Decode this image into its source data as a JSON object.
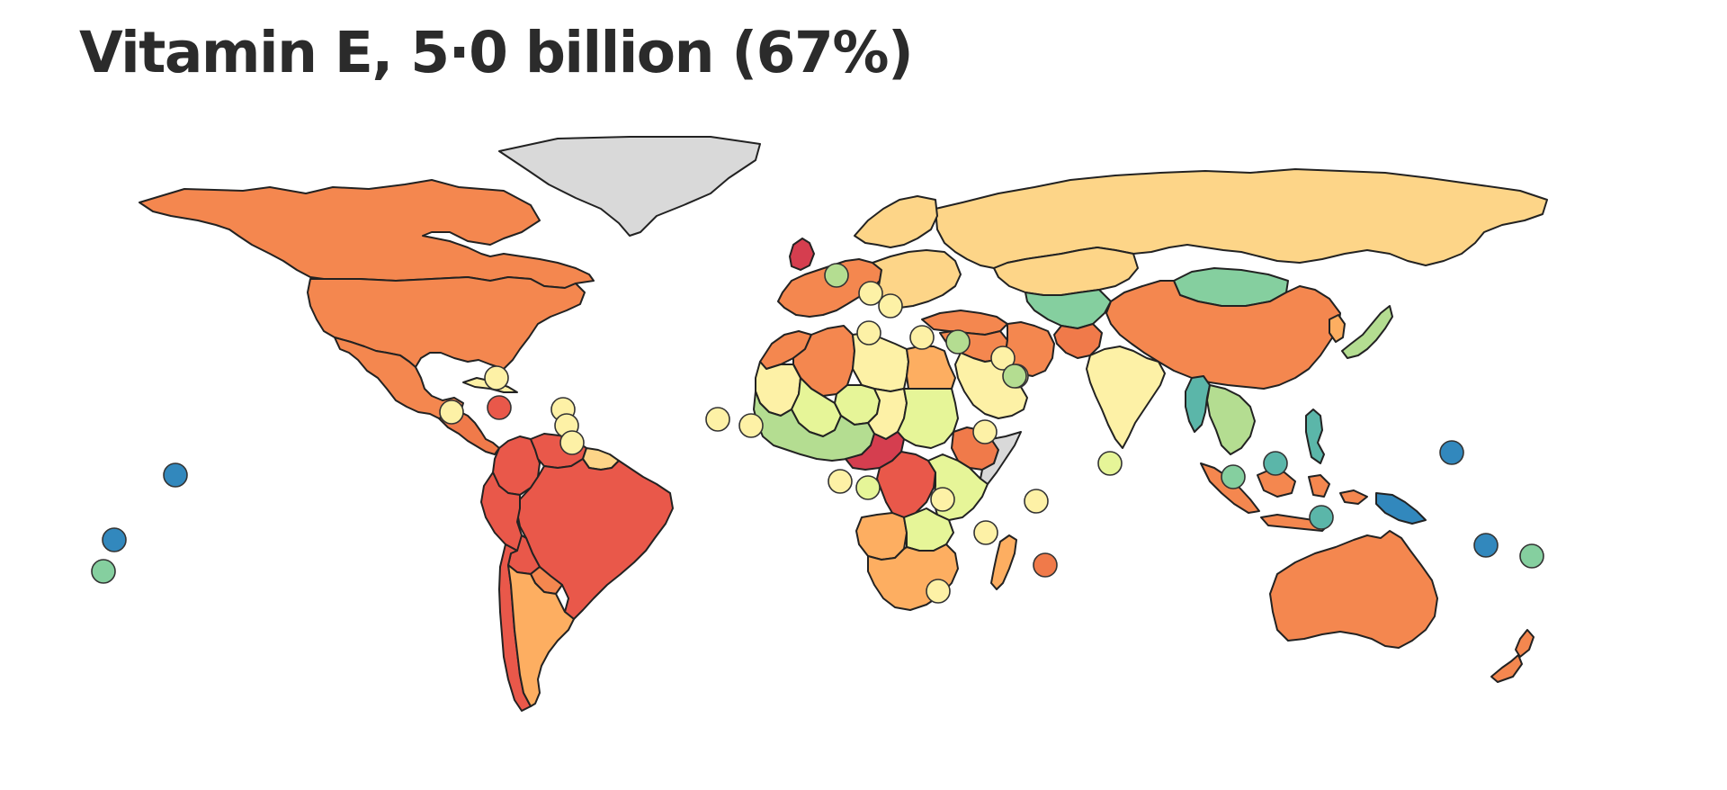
{
  "map": {
    "title": "Vitamin E, 5·0 billion (67%)"
  },
  "colors": {
    "no_data": "#d9d9d9",
    "dark_red": "#d53e4f",
    "red": "#e9584a",
    "orange_red": "#f07a4a",
    "orange": "#f4874f",
    "light_orange": "#fdae61",
    "pale_orange": "#fdd588",
    "pale_yellow": "#fdf1a6",
    "yellow_green": "#e6f598",
    "light_green": "#b4dd91",
    "green": "#85cf9f",
    "teal": "#5bb6a9",
    "blue": "#3288bd"
  },
  "regions": [
    {
      "name": "Greenland",
      "color": "no_data"
    },
    {
      "name": "Canada",
      "color": "orange"
    },
    {
      "name": "United States",
      "color": "orange"
    },
    {
      "name": "Mexico",
      "color": "orange"
    },
    {
      "name": "Cuba",
      "color": "pale_yellow"
    },
    {
      "name": "Central America",
      "color": "orange_red"
    },
    {
      "name": "Brazil",
      "color": "red"
    },
    {
      "name": "Colombia",
      "color": "red"
    },
    {
      "name": "Venezuela",
      "color": "red"
    },
    {
      "name": "Guianas",
      "color": "pale_orange"
    },
    {
      "name": "Peru",
      "color": "red"
    },
    {
      "name": "Bolivia",
      "color": "red"
    },
    {
      "name": "Paraguay",
      "color": "orange"
    },
    {
      "name": "Argentina",
      "color": "light_orange"
    },
    {
      "name": "Chile",
      "color": "red"
    },
    {
      "name": "Russia",
      "color": "pale_orange"
    },
    {
      "name": "Scandinavia",
      "color": "pale_orange"
    },
    {
      "name": "Western Europe",
      "color": "orange"
    },
    {
      "name": "United Kingdom",
      "color": "dark_red"
    },
    {
      "name": "Eastern Europe",
      "color": "pale_orange"
    },
    {
      "name": "Turkey",
      "color": "orange"
    },
    {
      "name": "Kazakhstan",
      "color": "pale_orange"
    },
    {
      "name": "Central Asia",
      "color": "green"
    },
    {
      "name": "Mongolia",
      "color": "green"
    },
    {
      "name": "China",
      "color": "orange"
    },
    {
      "name": "Japan",
      "color": "light_green"
    },
    {
      "name": "Korea",
      "color": "light_orange"
    },
    {
      "name": "Middle East",
      "color": "orange"
    },
    {
      "name": "Saudi Arabia",
      "color": "pale_yellow"
    },
    {
      "name": "Iran",
      "color": "orange"
    },
    {
      "name": "Afghanistan",
      "color": "orange_red"
    },
    {
      "name": "India",
      "color": "pale_yellow"
    },
    {
      "name": "Myanmar",
      "color": "teal"
    },
    {
      "name": "Mainland Southeast Asia",
      "color": "light_green"
    },
    {
      "name": "Indonesia",
      "color": "orange"
    },
    {
      "name": "Philippines",
      "color": "teal"
    },
    {
      "name": "Papua New Guinea",
      "color": "blue"
    },
    {
      "name": "Australia",
      "color": "orange"
    },
    {
      "name": "New Zealand",
      "color": "orange"
    },
    {
      "name": "Morocco",
      "color": "orange"
    },
    {
      "name": "Algeria",
      "color": "orange"
    },
    {
      "name": "Libya",
      "color": "pale_yellow"
    },
    {
      "name": "Egypt",
      "color": "light_orange"
    },
    {
      "name": "Mauritania",
      "color": "pale_yellow"
    },
    {
      "name": "Mali",
      "color": "yellow_green"
    },
    {
      "name": "Niger",
      "color": "yellow_green"
    },
    {
      "name": "Chad",
      "color": "pale_yellow"
    },
    {
      "name": "Sudan",
      "color": "yellow_green"
    },
    {
      "name": "Ethiopia",
      "color": "orange_red"
    },
    {
      "name": "Somalia",
      "color": "no_data"
    },
    {
      "name": "West Africa",
      "color": "light_green"
    },
    {
      "name": "Central Africa",
      "color": "dark_red"
    },
    {
      "name": "DR Congo",
      "color": "red"
    },
    {
      "name": "East Africa",
      "color": "yellow_green"
    },
    {
      "name": "Angola",
      "color": "light_orange"
    },
    {
      "name": "Zambia",
      "color": "yellow_green"
    },
    {
      "name": "Southern Africa",
      "color": "light_orange"
    },
    {
      "name": "Madagascar",
      "color": "light_orange"
    }
  ],
  "small_states": [
    {
      "name": "Hawaii region",
      "color": "blue"
    },
    {
      "name": "Pacific islands A",
      "color": "blue"
    },
    {
      "name": "Pacific islands B",
      "color": "green"
    },
    {
      "name": "Bahamas",
      "color": "pale_yellow"
    },
    {
      "name": "Belize",
      "color": "pale_yellow"
    },
    {
      "name": "Haiti",
      "color": "red"
    },
    {
      "name": "Caribbean A",
      "color": "pale_yellow"
    },
    {
      "name": "Caribbean B",
      "color": "pale_yellow"
    },
    {
      "name": "Caribbean C",
      "color": "pale_yellow"
    },
    {
      "name": "Cape Verde",
      "color": "pale_yellow"
    },
    {
      "name": "Gambia",
      "color": "pale_yellow"
    },
    {
      "name": "Sao Tome",
      "color": "pale_yellow"
    },
    {
      "name": "Equatorial Guinea",
      "color": "yellow_green"
    },
    {
      "name": "Andorra",
      "color": "light_green"
    },
    {
      "name": "San Marino",
      "color": "pale_yellow"
    },
    {
      "name": "Montenegro",
      "color": "pale_yellow"
    },
    {
      "name": "Malta",
      "color": "pale_yellow"
    },
    {
      "name": "Cyprus",
      "color": "pale_yellow"
    },
    {
      "name": "Lebanon",
      "color": "light_green"
    },
    {
      "name": "Qatar",
      "color": "pale_yellow"
    },
    {
      "name": "Bahrain",
      "color": "pale_yellow"
    },
    {
      "name": "UAE",
      "color": "light_green"
    },
    {
      "name": "Djibouti",
      "color": "pale_yellow"
    },
    {
      "name": "Rwanda",
      "color": "pale_yellow"
    },
    {
      "name": "Comoros",
      "color": "pale_yellow"
    },
    {
      "name": "Seychelles",
      "color": "pale_yellow"
    },
    {
      "name": "Mauritius",
      "color": "orange_red"
    },
    {
      "name": "Swaziland",
      "color": "pale_yellow"
    },
    {
      "name": "Maldives",
      "color": "yellow_green"
    },
    {
      "name": "Singapore",
      "color": "green"
    },
    {
      "name": "Brunei",
      "color": "teal"
    },
    {
      "name": "Timor-Leste",
      "color": "teal"
    },
    {
      "name": "Micronesia",
      "color": "blue"
    },
    {
      "name": "Vanuatu",
      "color": "blue"
    },
    {
      "name": "Fiji",
      "color": "green"
    }
  ]
}
